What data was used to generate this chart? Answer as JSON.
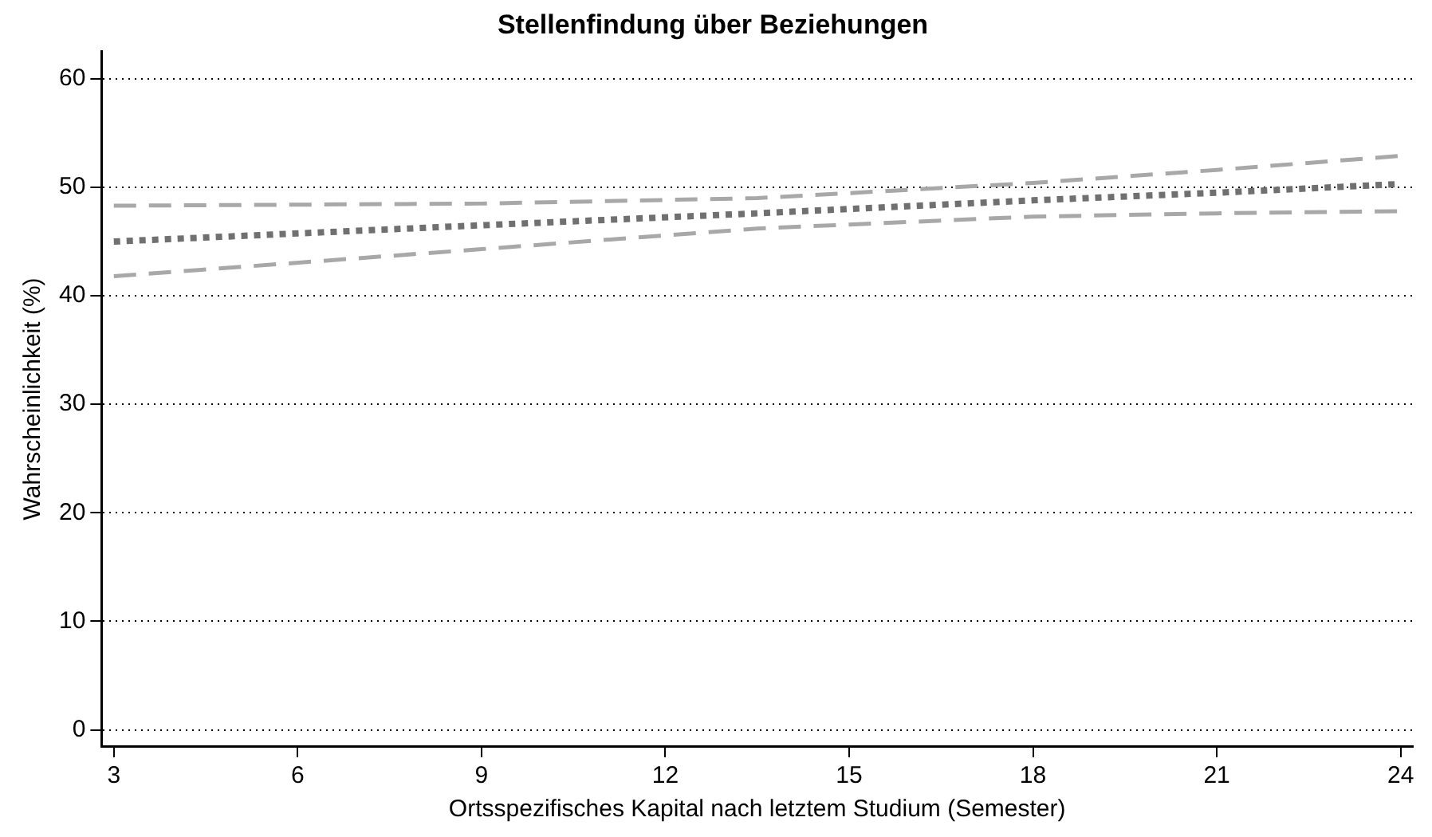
{
  "chart_data": {
    "type": "line",
    "title": "Stellenfindung über Beziehungen",
    "xlabel": "Ortsspezifisches Kapital nach letztem Studium (Semester)",
    "ylabel": "Wahrscheinlichkeit (%)",
    "x": [
      3,
      9,
      13.5,
      18,
      21,
      24
    ],
    "series": [
      {
        "color": "#a8a8a8",
        "line_style": "dashed",
        "values": [
          48.3,
          48.5,
          49.0,
          50.4,
          51.6,
          52.9
        ]
      },
      {
        "color": "#707070",
        "line_style": "dotted",
        "values": [
          45.0,
          46.5,
          47.6,
          48.8,
          49.5,
          50.3
        ]
      },
      {
        "color": "#a8a8a8",
        "line_style": "dashed",
        "values": [
          41.8,
          44.3,
          46.2,
          47.3,
          47.6,
          47.8
        ]
      }
    ],
    "xlim": [
      2.8,
      24.2
    ],
    "xticks": [
      3,
      6,
      9,
      12,
      15,
      18,
      21,
      24
    ],
    "ylim": [
      -1.5,
      62.5
    ],
    "yticks": [
      0,
      10,
      20,
      30,
      40,
      50,
      60
    ],
    "grid": "y",
    "legend": false,
    "marker": "none"
  }
}
